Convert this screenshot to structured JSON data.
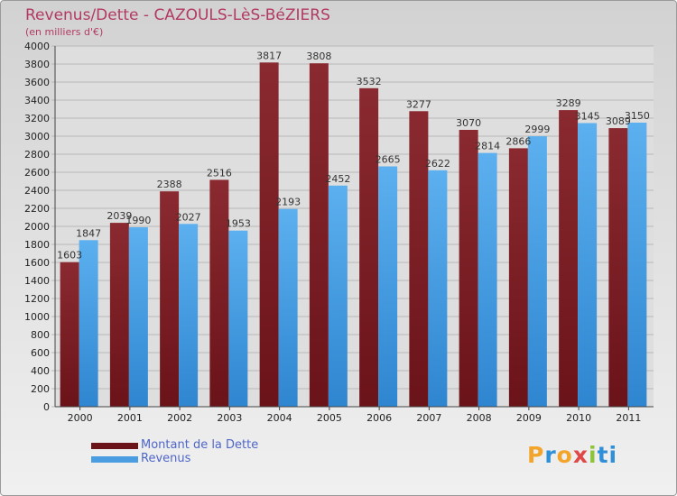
{
  "header": {
    "title": "Revenus/Dette - CAZOULS-LèS-BéZIERS",
    "subtitle": "(en milliers d'€)"
  },
  "colors": {
    "dette": "#6a1319",
    "revenus": "#4a9de0"
  },
  "legend": {
    "dette_label": "Montant de la Dette",
    "revenus_label": "Revenus"
  },
  "brand": {
    "text": "Proxiti",
    "letter_colors": [
      "#f2a52a",
      "#2f8fd8",
      "#f2a52a",
      "#e04848",
      "#8cc43a",
      "#2f8fd8",
      "#2f8fd8"
    ]
  },
  "chart_data": {
    "type": "bar",
    "title": "Revenus/Dette - CAZOULS-LèS-BéZIERS",
    "ylabel": "(en milliers d'€)",
    "xlabel": "",
    "ylim": [
      0,
      4000
    ],
    "ytick_step": 200,
    "grid": true,
    "legend_position": "bottom-left",
    "categories": [
      "2000",
      "2001",
      "2002",
      "2003",
      "2004",
      "2005",
      "2006",
      "2007",
      "2008",
      "2009",
      "2010",
      "2011"
    ],
    "series": [
      {
        "name": "Montant de la Dette",
        "values": [
          1603,
          2039,
          2388,
          2516,
          3817,
          3808,
          3532,
          3277,
          3070,
          2866,
          3289,
          3089
        ]
      },
      {
        "name": "Revenus",
        "values": [
          1847,
          1990,
          2027,
          1953,
          2193,
          2452,
          2665,
          2622,
          2814,
          2999,
          3145,
          3150
        ]
      }
    ]
  }
}
